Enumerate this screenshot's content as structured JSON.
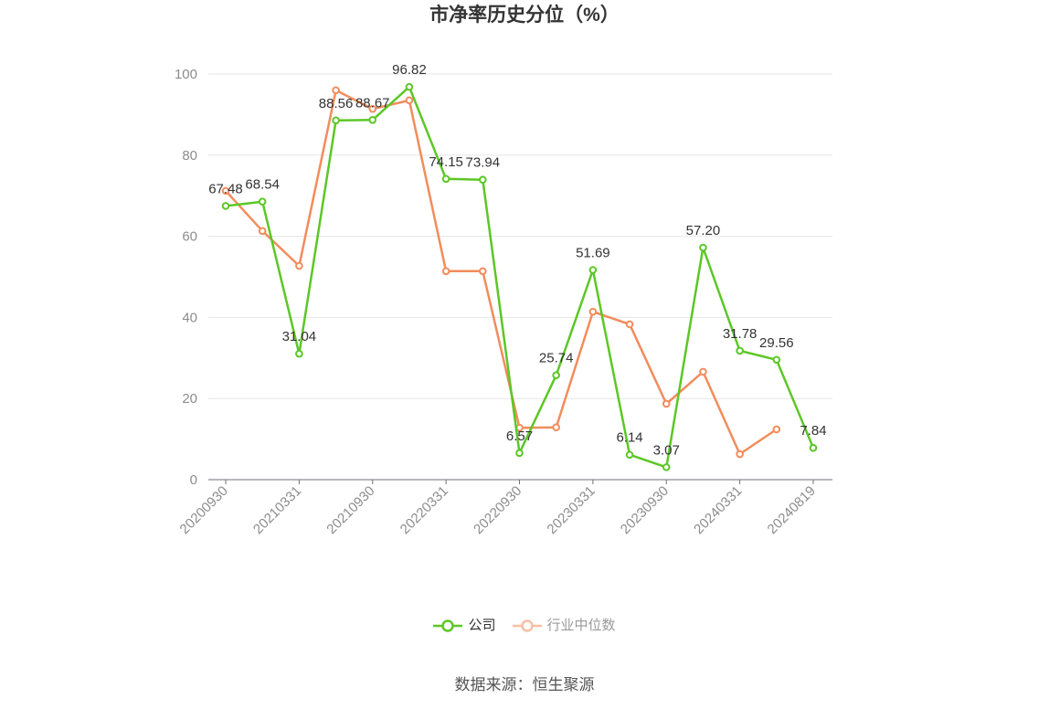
{
  "chart_data": {
    "type": "line",
    "title": "市净率历史分位（%）",
    "x_tick_labels": [
      "20200930",
      "20210331",
      "20210930",
      "20220331",
      "20220930",
      "20230331",
      "20230930",
      "20240331",
      "20240819"
    ],
    "y_ticks": [
      0,
      20,
      40,
      60,
      80,
      100
    ],
    "ylim": [
      0,
      100
    ],
    "grid": true,
    "legend_position": "bottom",
    "series": [
      {
        "name": "公司",
        "color": "#5cc726",
        "show_labels": true,
        "values": [
          67.48,
          68.54,
          31.04,
          88.56,
          88.67,
          96.82,
          74.15,
          73.94,
          6.57,
          25.74,
          51.69,
          6.14,
          3.07,
          57.2,
          31.78,
          29.56,
          7.84
        ]
      },
      {
        "name": "行业中位数",
        "color": "#f28c5c",
        "show_labels": false,
        "values": [
          71.2,
          61.3,
          52.7,
          96.0,
          91.4,
          93.5,
          51.4,
          51.4,
          12.8,
          12.9,
          41.4,
          38.3,
          18.7,
          26.6,
          6.3,
          12.4,
          null
        ]
      }
    ]
  },
  "source": "数据来源：恒生聚源"
}
